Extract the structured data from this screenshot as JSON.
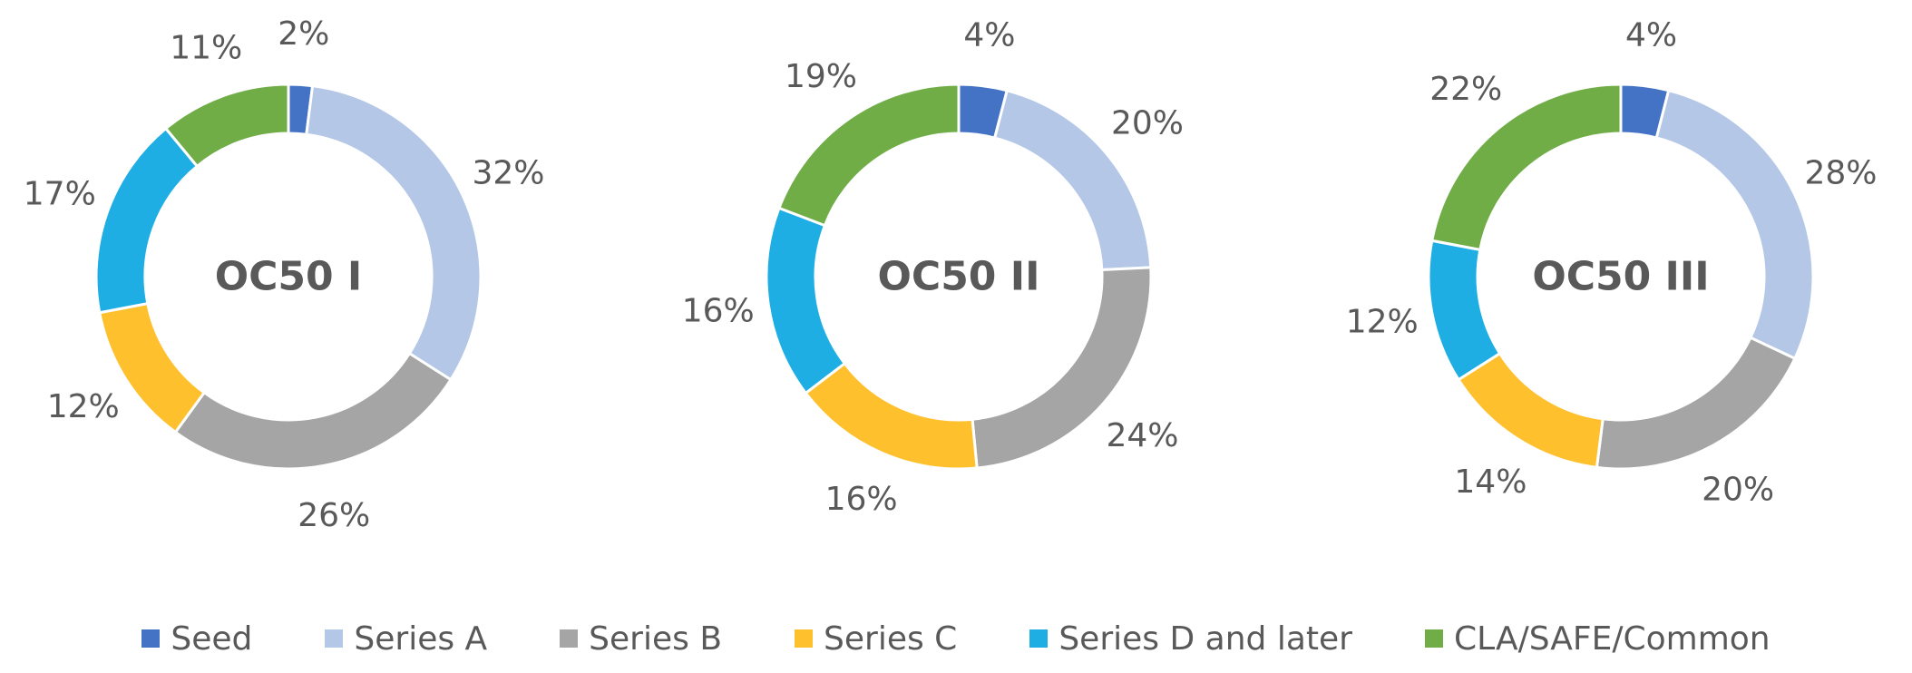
{
  "chart_data": {
    "type": "pie",
    "variant": "donut",
    "categories": [
      "Seed",
      "Series A",
      "Series B",
      "Series C",
      "Series D and later",
      "CLA/SAFE/Common"
    ],
    "colors": [
      "#4472C4",
      "#B4C7E7",
      "#A5A5A5",
      "#FFC02E",
      "#1EAEE4",
      "#70AD47"
    ],
    "charts": [
      {
        "title": "OC50 I",
        "values": [
          2,
          32,
          26,
          12,
          17,
          11
        ],
        "labels": [
          "2%",
          "32%",
          "26%",
          "12%",
          "17%",
          "11%"
        ]
      },
      {
        "title": "OC50 II",
        "values": [
          4,
          20,
          24,
          16,
          16,
          19
        ],
        "labels": [
          "4%",
          "20%",
          "24%",
          "16%",
          "16%",
          "19%"
        ]
      },
      {
        "title": "OC50 III",
        "values": [
          4,
          28,
          20,
          14,
          12,
          22
        ],
        "labels": [
          "4%",
          "28%",
          "20%",
          "14%",
          "12%",
          "22%"
        ]
      }
    ],
    "legend_position": "bottom"
  }
}
